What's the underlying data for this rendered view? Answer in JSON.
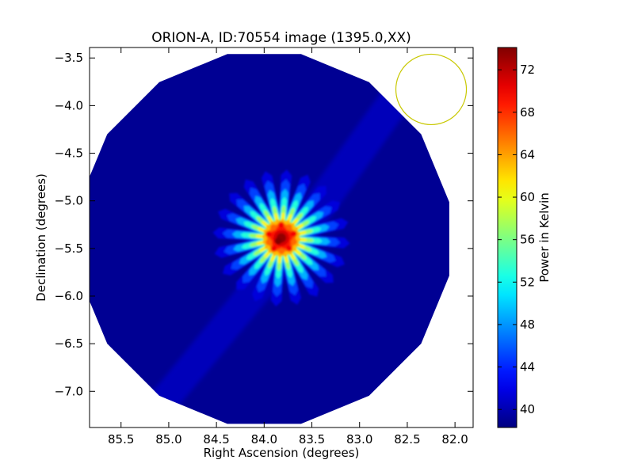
{
  "chart_data": {
    "type": "heatmap",
    "title": "ORION-A, ID:70554 image (1395.0,XX)",
    "xlabel": "Right Ascension (degrees)",
    "ylabel": "Declination (degrees)",
    "xlim": [
      85.83,
      81.81
    ],
    "ylim": [
      -7.38,
      -3.39
    ],
    "x_ticks": [
      85.5,
      85.0,
      84.5,
      84.0,
      83.5,
      83.0,
      82.5,
      82.0
    ],
    "x_tick_labels": [
      "85.5",
      "85.0",
      "84.5",
      "84.0",
      "83.5",
      "83.0",
      "82.5",
      "82.0"
    ],
    "y_ticks": [
      -3.5,
      -4.0,
      -4.5,
      -5.0,
      -5.5,
      -6.0,
      -6.5,
      -7.0
    ],
    "y_tick_labels": [
      "−3.5",
      "−4.0",
      "−4.5",
      "−5.0",
      "−5.5",
      "−6.0",
      "−6.5",
      "−7.0"
    ],
    "colormap": "jet",
    "colorbar": {
      "label": "Power in Kelvin",
      "range": [
        38.3,
        74.1
      ],
      "ticks": [
        40,
        44,
        48,
        52,
        56,
        60,
        64,
        68,
        72
      ],
      "tick_labels": [
        "40",
        "44",
        "48",
        "52",
        "56",
        "60",
        "64",
        "68",
        "72"
      ]
    },
    "image": {
      "shape": "polygon-disk",
      "center_ra": 84.0,
      "center_dec": -5.4,
      "radius_deg": 1.98,
      "background_value": 39.0,
      "source": {
        "ra": 83.82,
        "dec": -5.39,
        "peak_value": 73.0,
        "core_radius_deg": 0.12,
        "halo_value": 60.0,
        "spike_count": 20,
        "spike_length_deg": 0.72
      }
    },
    "beam_circle": {
      "ra": 82.25,
      "dec": -3.83,
      "radius_deg": 0.37,
      "color": "#c8c800"
    },
    "grid": false,
    "colors": {
      "background": "#00007f",
      "peak": "#8b0000",
      "beam": "#c8c800"
    }
  }
}
